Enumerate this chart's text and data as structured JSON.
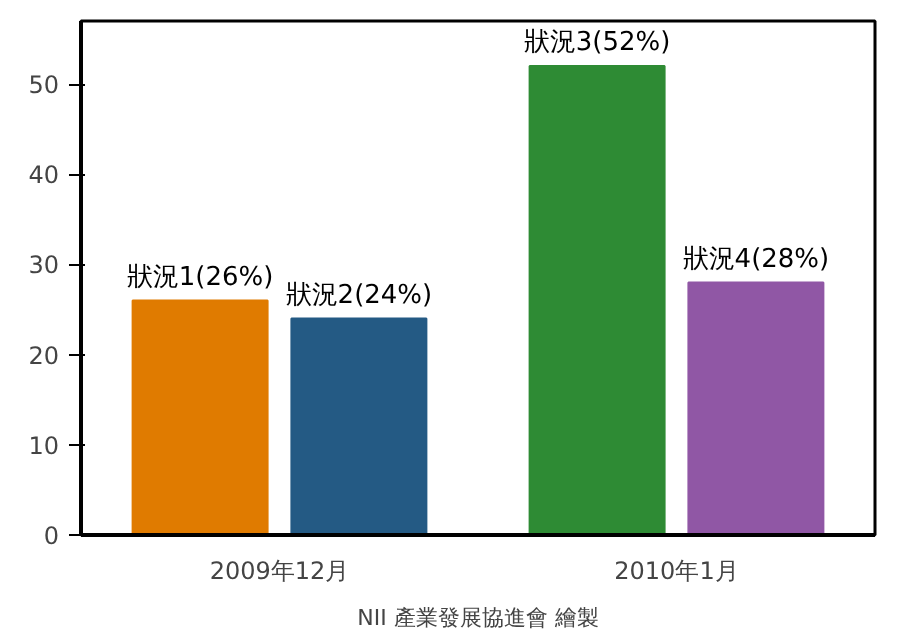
{
  "chart_data": {
    "type": "bar",
    "categories": [
      "2009年12月",
      "2010年1月"
    ],
    "series": [
      {
        "color": "#e07b00",
        "values": [
          26,
          null
        ],
        "value_labels": [
          "狀況1(26%)",
          null
        ]
      },
      {
        "color": "#245a84",
        "values": [
          24,
          null
        ],
        "value_labels": [
          "狀況2(24%)",
          null
        ]
      },
      {
        "color": "#2e8b34",
        "values": [
          null,
          52
        ],
        "value_labels": [
          null,
          "狀況3(52%)"
        ]
      },
      {
        "color": "#9057a5",
        "values": [
          null,
          28
        ],
        "value_labels": [
          null,
          "狀況4(28%)"
        ]
      }
    ],
    "ylim": [
      0,
      57
    ],
    "yticks": [
      0,
      10,
      20,
      30,
      40,
      50
    ],
    "grid": false,
    "annotations": [
      "NII 產業發展協進會 繪製"
    ]
  }
}
